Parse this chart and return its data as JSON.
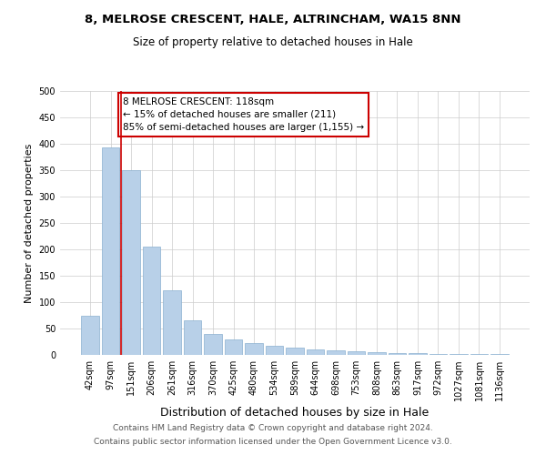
{
  "title_line1": "8, MELROSE CRESCENT, HALE, ALTRINCHAM, WA15 8NN",
  "title_line2": "Size of property relative to detached houses in Hale",
  "xlabel": "Distribution of detached houses by size in Hale",
  "ylabel": "Number of detached properties",
  "categories": [
    "42sqm",
    "97sqm",
    "151sqm",
    "206sqm",
    "261sqm",
    "316sqm",
    "370sqm",
    "425sqm",
    "480sqm",
    "534sqm",
    "589sqm",
    "644sqm",
    "698sqm",
    "753sqm",
    "808sqm",
    "863sqm",
    "917sqm",
    "972sqm",
    "1027sqm",
    "1081sqm",
    "1136sqm"
  ],
  "values": [
    75,
    393,
    350,
    205,
    122,
    65,
    40,
    30,
    22,
    18,
    14,
    11,
    9,
    7,
    5,
    4,
    3,
    2,
    2,
    1,
    1
  ],
  "bar_color": "#b8d0e8",
  "bar_edge_color": "#8ab0d0",
  "vline_x_pos": 1.5,
  "vline_color": "#cc0000",
  "annotation_text": "8 MELROSE CRESCENT: 118sqm\n← 15% of detached houses are smaller (211)\n85% of semi-detached houses are larger (1,155) →",
  "annotation_box_color": "#cc0000",
  "ylim": [
    0,
    500
  ],
  "yticks": [
    0,
    50,
    100,
    150,
    200,
    250,
    300,
    350,
    400,
    450,
    500
  ],
  "grid_color": "#cccccc",
  "footer_line1": "Contains HM Land Registry data © Crown copyright and database right 2024.",
  "footer_line2": "Contains public sector information licensed under the Open Government Licence v3.0.",
  "bg_color": "#ffffff",
  "title_fontsize": 9.5,
  "subtitle_fontsize": 8.5,
  "ylabel_fontsize": 8,
  "xlabel_fontsize": 9,
  "tick_fontsize": 7,
  "annotation_fontsize": 7.5,
  "footer_fontsize": 6.5,
  "footer_color": "#555555"
}
